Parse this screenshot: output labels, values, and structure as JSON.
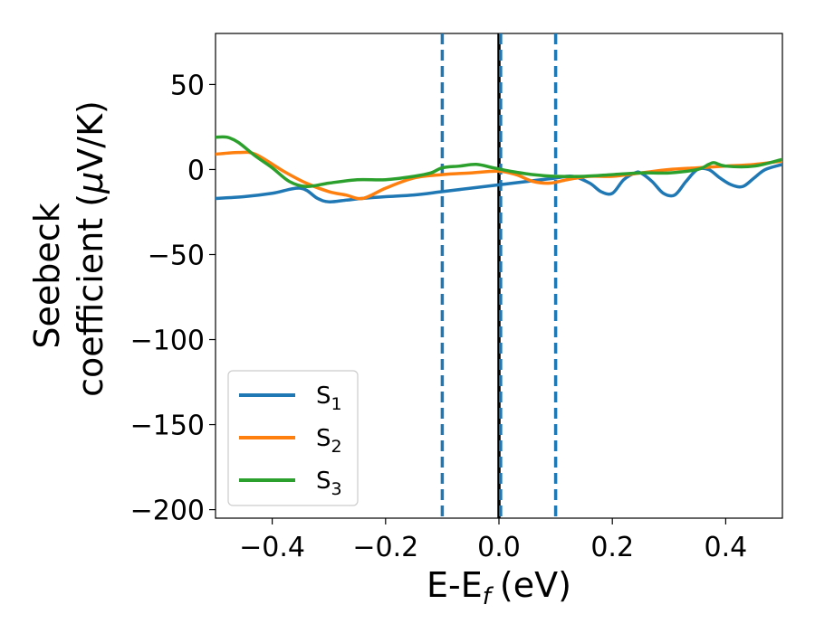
{
  "chart_data": {
    "type": "line",
    "xlabel_main": "E-E",
    "xlabel_sub": "f",
    "xlabel_unit": "(eV)",
    "ylabel_line1": "Seebeck",
    "ylabel_line2": "coefficient  (",
    "ylabel_mu": "μ",
    "ylabel_unit": "V/K)",
    "xlim": [
      -0.5,
      0.5
    ],
    "ylim": [
      -205,
      80
    ],
    "xticks": [
      -0.4,
      -0.2,
      0.0,
      0.2,
      0.4
    ],
    "xtick_labels": [
      "−0.4",
      "−0.2",
      "0.0",
      "0.2",
      "0.4"
    ],
    "yticks": [
      50,
      0,
      -50,
      -100,
      -150,
      -200
    ],
    "ytick_labels": [
      "50",
      "0",
      "−50",
      "−100",
      "−150",
      "−200"
    ],
    "grid": false,
    "legend_position": "lower-left",
    "vlines": [
      {
        "x": -0.1,
        "style": "dashed",
        "color": "#1f77b4"
      },
      {
        "x": 0.0,
        "style": "solid",
        "color": "#000000"
      },
      {
        "x": 0.003,
        "style": "dashed",
        "color": "#1f77b4"
      },
      {
        "x": 0.1,
        "style": "dashed",
        "color": "#1f77b4"
      }
    ],
    "series": [
      {
        "name_main": "S",
        "name_sub": "1",
        "color": "#1f77b4",
        "x": [
          -0.5,
          -0.45,
          -0.4,
          -0.35,
          -0.32,
          -0.3,
          -0.27,
          -0.24,
          -0.2,
          -0.15,
          -0.1,
          -0.05,
          0.0,
          0.05,
          0.1,
          0.13,
          0.16,
          0.18,
          0.2,
          0.22,
          0.24,
          0.25,
          0.27,
          0.29,
          0.31,
          0.33,
          0.35,
          0.37,
          0.39,
          0.41,
          0.43,
          0.45,
          0.47,
          0.5
        ],
        "y": [
          -17,
          -16,
          -14,
          -11,
          -17,
          -19,
          -18,
          -17,
          -16,
          -15,
          -13,
          -11,
          -9,
          -7,
          -5,
          -4,
          -8,
          -13,
          -14,
          -6,
          -2,
          -2,
          -7,
          -14,
          -15,
          -7,
          0,
          0,
          -5,
          -9,
          -10,
          -5,
          0,
          3
        ]
      },
      {
        "name_main": "S",
        "name_sub": "2",
        "color": "#ff7f0e",
        "x": [
          -0.5,
          -0.46,
          -0.43,
          -0.38,
          -0.34,
          -0.3,
          -0.27,
          -0.24,
          -0.2,
          -0.15,
          -0.1,
          -0.05,
          0.0,
          0.03,
          0.06,
          0.09,
          0.12,
          0.16,
          0.2,
          0.25,
          0.3,
          0.35,
          0.4,
          0.45,
          0.5
        ],
        "y": [
          9,
          10,
          9,
          -1,
          -8,
          -13,
          -15,
          -17,
          -11,
          -5,
          -3,
          -2,
          -1,
          -3,
          -7,
          -8,
          -6,
          -4,
          -4,
          -2,
          0,
          1,
          2,
          3,
          5
        ]
      },
      {
        "name_main": "S",
        "name_sub": "3",
        "color": "#2ca02c",
        "x": [
          -0.5,
          -0.48,
          -0.46,
          -0.43,
          -0.4,
          -0.37,
          -0.34,
          -0.3,
          -0.25,
          -0.2,
          -0.15,
          -0.12,
          -0.1,
          -0.07,
          -0.04,
          -0.01,
          0.02,
          0.06,
          0.1,
          0.15,
          0.2,
          0.25,
          0.3,
          0.35,
          0.37,
          0.38,
          0.4,
          0.45,
          0.5
        ],
        "y": [
          19,
          19,
          16,
          8,
          1,
          -7,
          -10,
          -8,
          -6,
          -6,
          -4,
          -2,
          1,
          2,
          3,
          1,
          -1,
          -3,
          -4,
          -4,
          -3,
          -2,
          -2,
          0,
          3,
          4,
          2,
          2,
          6
        ]
      }
    ]
  }
}
